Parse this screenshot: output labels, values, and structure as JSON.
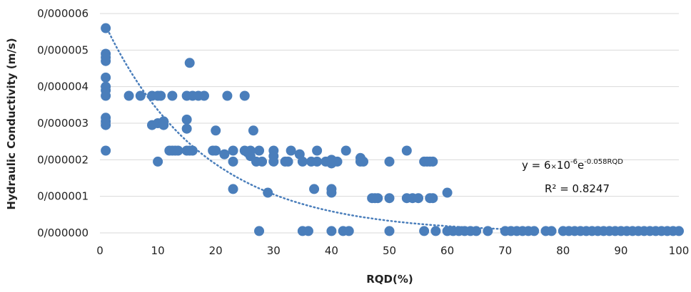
{
  "chart_data": {
    "type": "scatter",
    "title": "",
    "xlabel": "RQD(%)",
    "ylabel": "Hydraulic Conductivity (m/s)",
    "xlim": [
      0,
      100
    ],
    "ylim": [
      0,
      6e-06
    ],
    "x_ticks": [
      "0",
      "10",
      "20",
      "30",
      "40",
      "50",
      "60",
      "70",
      "80",
      "90",
      "100"
    ],
    "y_ticks": [
      "0/000000",
      "0/000001",
      "0/000002",
      "0/000003",
      "0/000004",
      "0/000005",
      "0/000006"
    ],
    "grid": "horizontal",
    "legend": "none",
    "marker_color": "#4a7ebb",
    "trendline": {
      "type": "exponential",
      "a": 6e-06,
      "b": -0.058,
      "style": "dotted",
      "color": "#4a7ebb",
      "equation_parts": [
        "y = 6",
        "×",
        "10",
        "-6",
        "e",
        "-0.058RQD"
      ],
      "r2_label": "R² = 0.8247"
    },
    "points": [
      [
        1,
        5.6e-06
      ],
      [
        1,
        4.9e-06
      ],
      [
        1,
        4.8e-06
      ],
      [
        1,
        4.7e-06
      ],
      [
        1,
        4.25e-06
      ],
      [
        1,
        4e-06
      ],
      [
        1,
        3.9e-06
      ],
      [
        1,
        3.75e-06
      ],
      [
        1,
        3.15e-06
      ],
      [
        1,
        3.05e-06
      ],
      [
        1,
        2.95e-06
      ],
      [
        1,
        2.25e-06
      ],
      [
        5,
        3.75e-06
      ],
      [
        7,
        3.75e-06
      ],
      [
        9,
        3.75e-06
      ],
      [
        10,
        3.75e-06
      ],
      [
        10.5,
        3.75e-06
      ],
      [
        12.5,
        3.75e-06
      ],
      [
        9,
        2.95e-06
      ],
      [
        10,
        3e-06
      ],
      [
        11,
        3.05e-06
      ],
      [
        11,
        2.95e-06
      ],
      [
        10,
        1.95e-06
      ],
      [
        12,
        2.25e-06
      ],
      [
        12.5,
        2.25e-06
      ],
      [
        13,
        2.25e-06
      ],
      [
        13.5,
        2.25e-06
      ],
      [
        15,
        3.75e-06
      ],
      [
        15.5,
        4.65e-06
      ],
      [
        15,
        3.1e-06
      ],
      [
        15,
        2.85e-06
      ],
      [
        15,
        2.25e-06
      ],
      [
        15.5,
        2.25e-06
      ],
      [
        16,
        2.25e-06
      ],
      [
        16,
        3.75e-06
      ],
      [
        17,
        3.75e-06
      ],
      [
        18,
        3.75e-06
      ],
      [
        19.5,
        2.25e-06
      ],
      [
        20,
        2.8e-06
      ],
      [
        20,
        2.25e-06
      ],
      [
        21.5,
        2.15e-06
      ],
      [
        22,
        3.75e-06
      ],
      [
        23,
        2.25e-06
      ],
      [
        23,
        1.95e-06
      ],
      [
        23,
        1.2e-06
      ],
      [
        25,
        3.75e-06
      ],
      [
        25,
        2.25e-06
      ],
      [
        25.5,
        2.2e-06
      ],
      [
        26,
        2.25e-06
      ],
      [
        26,
        2.1e-06
      ],
      [
        26.5,
        2.8e-06
      ],
      [
        27,
        1.95e-06
      ],
      [
        27.5,
        2.25e-06
      ],
      [
        28,
        1.95e-06
      ],
      [
        27.5,
        5e-08
      ],
      [
        29,
        1.1e-06
      ],
      [
        30,
        2.25e-06
      ],
      [
        30,
        2.1e-06
      ],
      [
        30,
        1.95e-06
      ],
      [
        32,
        1.95e-06
      ],
      [
        32.5,
        1.95e-06
      ],
      [
        33,
        2.25e-06
      ],
      [
        34.5,
        2.15e-06
      ],
      [
        35,
        1.95e-06
      ],
      [
        35,
        5e-08
      ],
      [
        36,
        5e-08
      ],
      [
        36.5,
        1.95e-06
      ],
      [
        37,
        1.2e-06
      ],
      [
        37.5,
        2.25e-06
      ],
      [
        37.5,
        1.95e-06
      ],
      [
        39,
        1.95e-06
      ],
      [
        40,
        2e-06
      ],
      [
        40,
        1.9e-06
      ],
      [
        40,
        1.2e-06
      ],
      [
        40,
        1.1e-06
      ],
      [
        40,
        5e-08
      ],
      [
        41,
        1.95e-06
      ],
      [
        42,
        5e-08
      ],
      [
        42.5,
        2.25e-06
      ],
      [
        43,
        5e-08
      ],
      [
        45,
        2.05e-06
      ],
      [
        45,
        1.95e-06
      ],
      [
        45.5,
        1.95e-06
      ],
      [
        47,
        9.5e-07
      ],
      [
        47.5,
        9.5e-07
      ],
      [
        48,
        9.5e-07
      ],
      [
        50,
        1.95e-06
      ],
      [
        50,
        9.5e-07
      ],
      [
        50,
        5e-08
      ],
      [
        53,
        2.25e-06
      ],
      [
        53,
        9.5e-07
      ],
      [
        54,
        9.5e-07
      ],
      [
        55,
        9.5e-07
      ],
      [
        56,
        1.95e-06
      ],
      [
        56.5,
        1.95e-06
      ],
      [
        57,
        1.95e-06
      ],
      [
        57.5,
        1.95e-06
      ],
      [
        56,
        5e-08
      ],
      [
        57,
        9.5e-07
      ],
      [
        57.5,
        9.5e-07
      ],
      [
        58,
        5e-08
      ],
      [
        60,
        1.1e-06
      ],
      [
        60,
        5e-08
      ],
      [
        61,
        5e-08
      ],
      [
        62,
        5e-08
      ],
      [
        63,
        5e-08
      ],
      [
        64,
        5e-08
      ],
      [
        65,
        5e-08
      ],
      [
        67,
        5e-08
      ],
      [
        70,
        5e-08
      ],
      [
        71,
        5e-08
      ],
      [
        72,
        5e-08
      ],
      [
        73,
        5e-08
      ],
      [
        74,
        5e-08
      ],
      [
        75,
        5e-08
      ],
      [
        77,
        5e-08
      ],
      [
        78,
        5e-08
      ],
      [
        80,
        5e-08
      ],
      [
        81,
        5e-08
      ],
      [
        82,
        5e-08
      ],
      [
        83,
        5e-08
      ],
      [
        84,
        5e-08
      ],
      [
        85,
        5e-08
      ],
      [
        86,
        5e-08
      ],
      [
        87,
        5e-08
      ],
      [
        88,
        5e-08
      ],
      [
        89,
        5e-08
      ],
      [
        90,
        5e-08
      ],
      [
        91,
        5e-08
      ],
      [
        92,
        5e-08
      ],
      [
        93,
        5e-08
      ],
      [
        94,
        5e-08
      ],
      [
        95,
        5e-08
      ],
      [
        96,
        5e-08
      ],
      [
        97,
        5e-08
      ],
      [
        98,
        5e-08
      ],
      [
        99,
        5e-08
      ],
      [
        100,
        5e-08
      ]
    ]
  }
}
